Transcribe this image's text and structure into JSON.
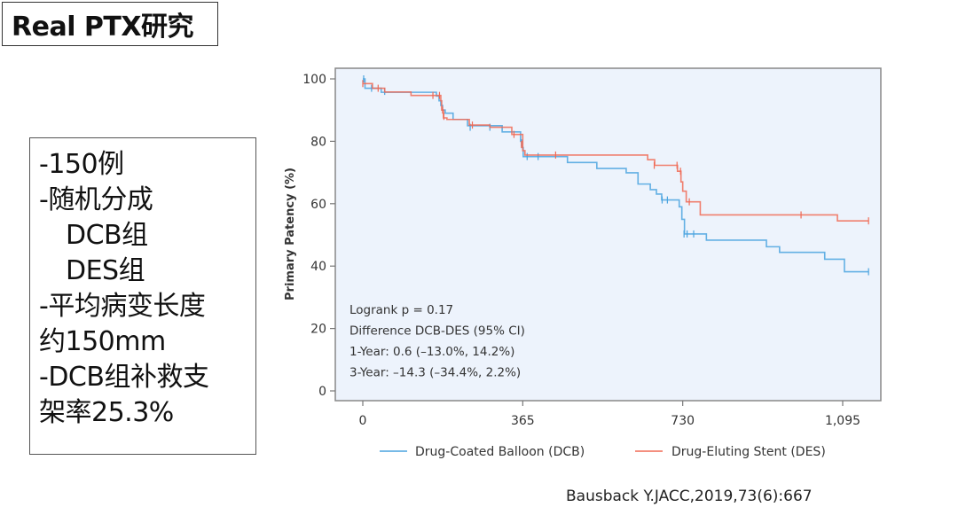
{
  "slide": {
    "title": "Real PTX研究",
    "info_lines": [
      {
        "text": "-150例",
        "indent": false
      },
      {
        "text": "-随机分成",
        "indent": false
      },
      {
        "text": "DCB组",
        "indent": true
      },
      {
        "text": "DES组",
        "indent": true
      },
      {
        "text": "-平均病变长度",
        "indent": false
      },
      {
        "text": "约150mm",
        "indent": false
      },
      {
        "text": "-DCB组补救支",
        "indent": false
      },
      {
        "text": "架率25.3%",
        "indent": false
      }
    ],
    "citation": "Bausback Y.JACC,2019,73(6):667"
  },
  "chart_data": {
    "type": "line",
    "subtype": "kaplan-meier-step",
    "title": "",
    "xlabel": "",
    "ylabel": "Primary Patency (%)",
    "xlim": [
      0,
      1160
    ],
    "ylim": [
      0,
      100
    ],
    "x_ticks": [
      0,
      365,
      730,
      1095
    ],
    "x_tick_labels": [
      "0",
      "365",
      "730",
      "1,095"
    ],
    "y_ticks": [
      0,
      20,
      40,
      60,
      80,
      100
    ],
    "y_tick_labels": [
      "0",
      "20",
      "40",
      "60",
      "80",
      "100"
    ],
    "grid": false,
    "background": "#edf3fc",
    "legend_position": "bottom",
    "annotations": [
      "Logrank p = 0.17",
      "Difference  DCB-DES (95% CI)",
      "1-Year: 0.6 (–13.0%, 14.2%)",
      "3-Year: –14.3 (–34.4%, 2.2%)"
    ],
    "series": [
      {
        "name": "Drug-Coated Balloon (DCB)",
        "color": "#4aa3df",
        "steps": [
          [
            0,
            100
          ],
          [
            5,
            97
          ],
          [
            42,
            95.7
          ],
          [
            168,
            94.5
          ],
          [
            174,
            93
          ],
          [
            178,
            91.5
          ],
          [
            182,
            90
          ],
          [
            188,
            89
          ],
          [
            206,
            87
          ],
          [
            239,
            85
          ],
          [
            318,
            83
          ],
          [
            360,
            80
          ],
          [
            363,
            78
          ],
          [
            366,
            75.1
          ],
          [
            467,
            73.2
          ],
          [
            534,
            71.3
          ],
          [
            601,
            69.9
          ],
          [
            628,
            66.3
          ],
          [
            656,
            64.5
          ],
          [
            670,
            63.1
          ],
          [
            682,
            61.2
          ],
          [
            722,
            59
          ],
          [
            728,
            55
          ],
          [
            734,
            50.3
          ],
          [
            784,
            48.3
          ],
          [
            921,
            46.2
          ],
          [
            951,
            44.4
          ],
          [
            1054,
            42.2
          ],
          [
            1099,
            38.2
          ],
          [
            1154,
            38.2
          ]
        ],
        "censor_marks": [
          [
            2,
            100
          ],
          [
            20,
            97
          ],
          [
            50,
            96
          ],
          [
            245,
            84.5
          ],
          [
            290,
            84.5
          ],
          [
            362,
            79.5
          ],
          [
            375,
            75.1
          ],
          [
            400,
            75.1
          ],
          [
            683,
            61.2
          ],
          [
            695,
            61.2
          ],
          [
            733,
            50.3
          ],
          [
            740,
            50.3
          ],
          [
            755,
            50.3
          ],
          [
            1154,
            38.2
          ]
        ]
      },
      {
        "name": "Drug-Eluting Stent (DES)",
        "color": "#f06a55",
        "steps": [
          [
            0,
            98.5
          ],
          [
            15,
            98.5
          ],
          [
            22,
            97
          ],
          [
            50,
            95.8
          ],
          [
            110,
            94.7
          ],
          [
            170,
            94.7
          ],
          [
            178,
            93
          ],
          [
            180,
            90
          ],
          [
            184,
            87.5
          ],
          [
            192,
            87
          ],
          [
            243,
            85.2
          ],
          [
            290,
            84.5
          ],
          [
            340,
            82.2
          ],
          [
            360,
            82.2
          ],
          [
            365,
            77
          ],
          [
            370,
            75.6
          ],
          [
            650,
            74.1
          ],
          [
            666,
            72.3
          ],
          [
            718,
            70.4
          ],
          [
            726,
            67
          ],
          [
            730,
            64
          ],
          [
            738,
            60.6
          ],
          [
            770,
            56.4
          ],
          [
            1083,
            54.5
          ],
          [
            1154,
            54.5
          ]
        ],
        "censor_marks": [
          [
            0,
            98.5
          ],
          [
            35,
            97
          ],
          [
            160,
            94.7
          ],
          [
            175,
            94.7
          ],
          [
            182,
            90
          ],
          [
            185,
            88
          ],
          [
            250,
            85.2
          ],
          [
            345,
            82.2
          ],
          [
            362,
            79
          ],
          [
            440,
            75.6
          ],
          [
            665,
            72.3
          ],
          [
            717,
            72.3
          ],
          [
            725,
            70.4
          ],
          [
            745,
            60.6
          ],
          [
            1000,
            56.4
          ],
          [
            1154,
            54.5
          ]
        ]
      }
    ]
  }
}
